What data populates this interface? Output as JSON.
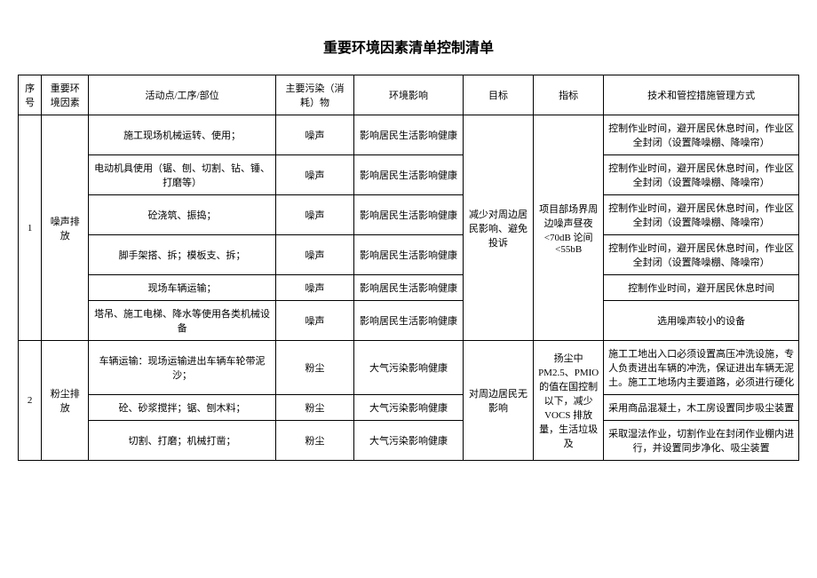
{
  "title": "重要环境因素清单控制清单",
  "headers": {
    "seq": "序号",
    "factor": "重要环境因素",
    "activity": "活动点/工序/部位",
    "pollutant": "主要污染（消耗）物",
    "impact": "环境影响",
    "goal": "目标",
    "index": "指标",
    "measure": "技术和管控措施管理方式"
  },
  "group1": {
    "seq": "1",
    "factor": "噪声排放",
    "goal": "减少对周边居民影响、避免投诉",
    "index": "项目部场界周边噪声昼夜<70dB 论间<55bB",
    "rows": [
      {
        "activity": "施工现场机械运转、使用；",
        "pollutant": "噪声",
        "impact": "影响居民生活影响健康",
        "measure": "控制作业时间，避开居民休息时间，作业区全封闭（设置降噪棚、降噪帘）"
      },
      {
        "activity": "电动机具使用（锯、刨、切割、钻、锤、打磨等）",
        "pollutant": "噪声",
        "impact": "影响居民生活影响健康",
        "measure": "控制作业时间，避开居民休息时间，作业区全封闭（设置降噪棚、降噪帘）"
      },
      {
        "activity": "砼浇筑、振捣；",
        "pollutant": "噪声",
        "impact": "影响居民生活影响健康",
        "measure": "控制作业时间，避开居民休息时间，作业区全封闭（设置降噪棚、降噪帘）"
      },
      {
        "activity": "脚手架搭、拆；模板支、拆；",
        "pollutant": "噪声",
        "impact": "影响居民生活影响健康",
        "measure": "控制作业时间，避开居民休息时间，作业区全封闭（设置降噪棚、降噪帘）"
      },
      {
        "activity": "现场车辆运输；",
        "pollutant": "噪声",
        "impact": "影响居民生活影响健康",
        "measure": "控制作业时间，避开居民休息时间"
      },
      {
        "activity": "塔吊、施工电梯、降水等使用各类机械设备",
        "pollutant": "噪声",
        "impact": "影响居民生活影响健康",
        "measure": "选用噪声较小的设备"
      }
    ]
  },
  "group2": {
    "seq": "2",
    "factor": "粉尘排放",
    "goal": "对周边居民无影响",
    "index": "扬尘中 PM2.5、PMIO 的值在国控制以下，减少VOCS 排放量，生活垃圾及",
    "rows": [
      {
        "activity": "车辆运输：现场运输进出车辆车轮带泥沙；",
        "pollutant": "粉尘",
        "impact": "大气污染影响健康",
        "measure": "施工工地出入口必须设置高压冲洗设施，专人负责进出车辆的冲洗，保证进出车辆无泥土。施工工地场内主要道路，必须进行硬化"
      },
      {
        "activity": "砼、砂浆搅拌；锯、刨木料；",
        "pollutant": "粉尘",
        "impact": "大气污染影响健康",
        "measure": "采用商品混凝土，木工房设置同步吸尘装置"
      },
      {
        "activity": "切割、打磨；机械打凿；",
        "pollutant": "粉尘",
        "impact": "大气污染影响健康",
        "measure": "采取湿法作业，切割作业在封闭作业棚内进行，并设置同步净化、吸尘装置"
      }
    ]
  }
}
